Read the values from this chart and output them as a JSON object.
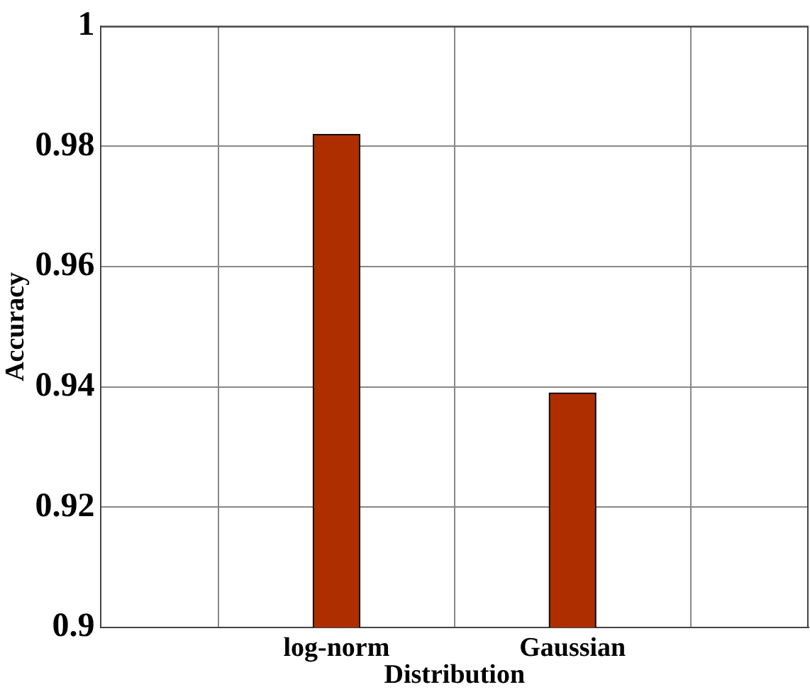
{
  "chart_data": {
    "type": "bar",
    "categories": [
      "log-norm",
      "Gaussian"
    ],
    "values": [
      0.982,
      0.939
    ],
    "color": "#ae2e00",
    "xlabel": "Distribution",
    "ylabel": "Accuracy",
    "ylim": [
      0.9,
      1
    ],
    "yticks": [
      0.9,
      0.92,
      0.94,
      0.96,
      0.98,
      1
    ],
    "grid": true
  }
}
